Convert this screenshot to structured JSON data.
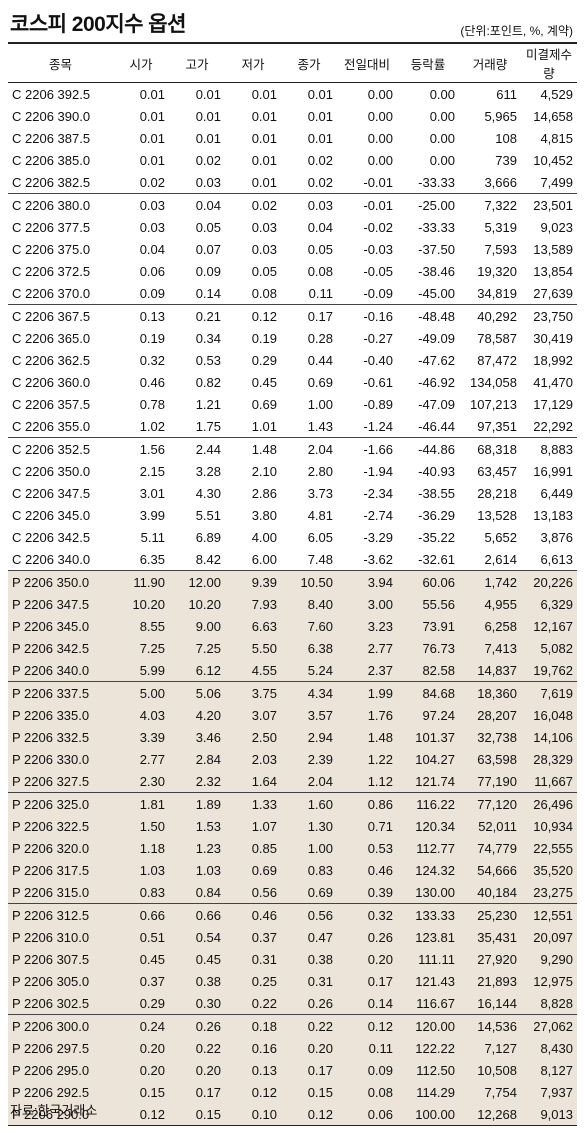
{
  "header": {
    "title": "코스피 200지수 옵션",
    "unit": "(단위:포인트, %, 계약)"
  },
  "table": {
    "columns": [
      "종목",
      "시가",
      "고가",
      "저가",
      "종가",
      "전일대비",
      "등락률",
      "거래량",
      "미결제수량"
    ],
    "rows": [
      [
        "C 2206 392.5",
        "0.01",
        "0.01",
        "0.01",
        "0.01",
        "0.00",
        "0.00",
        "611",
        "4,529"
      ],
      [
        "C 2206 390.0",
        "0.01",
        "0.01",
        "0.01",
        "0.01",
        "0.00",
        "0.00",
        "5,965",
        "14,658"
      ],
      [
        "C 2206 387.5",
        "0.01",
        "0.01",
        "0.01",
        "0.01",
        "0.00",
        "0.00",
        "108",
        "4,815"
      ],
      [
        "C 2206 385.0",
        "0.01",
        "0.02",
        "0.01",
        "0.02",
        "0.00",
        "0.00",
        "739",
        "10,452"
      ],
      [
        "C 2206 382.5",
        "0.02",
        "0.03",
        "0.01",
        "0.02",
        "-0.01",
        "-33.33",
        "3,666",
        "7,499"
      ],
      [
        "C 2206 380.0",
        "0.03",
        "0.04",
        "0.02",
        "0.03",
        "-0.01",
        "-25.00",
        "7,322",
        "23,501"
      ],
      [
        "C 2206 377.5",
        "0.03",
        "0.05",
        "0.03",
        "0.04",
        "-0.02",
        "-33.33",
        "5,319",
        "9,023"
      ],
      [
        "C 2206 375.0",
        "0.04",
        "0.07",
        "0.03",
        "0.05",
        "-0.03",
        "-37.50",
        "7,593",
        "13,589"
      ],
      [
        "C 2206 372.5",
        "0.06",
        "0.09",
        "0.05",
        "0.08",
        "-0.05",
        "-38.46",
        "19,320",
        "13,854"
      ],
      [
        "C 2206 370.0",
        "0.09",
        "0.14",
        "0.08",
        "0.11",
        "-0.09",
        "-45.00",
        "34,819",
        "27,639"
      ],
      [
        "C 2206 367.5",
        "0.13",
        "0.21",
        "0.12",
        "0.17",
        "-0.16",
        "-48.48",
        "40,292",
        "23,750"
      ],
      [
        "C 2206 365.0",
        "0.19",
        "0.34",
        "0.19",
        "0.28",
        "-0.27",
        "-49.09",
        "78,587",
        "30,419"
      ],
      [
        "C 2206 362.5",
        "0.32",
        "0.53",
        "0.29",
        "0.44",
        "-0.40",
        "-47.62",
        "87,472",
        "18,992"
      ],
      [
        "C 2206 360.0",
        "0.46",
        "0.82",
        "0.45",
        "0.69",
        "-0.61",
        "-46.92",
        "134,058",
        "41,470"
      ],
      [
        "C 2206 357.5",
        "0.78",
        "1.21",
        "0.69",
        "1.00",
        "-0.89",
        "-47.09",
        "107,213",
        "17,129"
      ],
      [
        "C 2206 355.0",
        "1.02",
        "1.75",
        "1.01",
        "1.43",
        "-1.24",
        "-46.44",
        "97,351",
        "22,292"
      ],
      [
        "C 2206 352.5",
        "1.56",
        "2.44",
        "1.48",
        "2.04",
        "-1.66",
        "-44.86",
        "68,318",
        "8,883"
      ],
      [
        "C 2206 350.0",
        "2.15",
        "3.28",
        "2.10",
        "2.80",
        "-1.94",
        "-40.93",
        "63,457",
        "16,991"
      ],
      [
        "C 2206 347.5",
        "3.01",
        "4.30",
        "2.86",
        "3.73",
        "-2.34",
        "-38.55",
        "28,218",
        "6,449"
      ],
      [
        "C 2206 345.0",
        "3.99",
        "5.51",
        "3.80",
        "4.81",
        "-2.74",
        "-36.29",
        "13,528",
        "13,183"
      ],
      [
        "C 2206 342.5",
        "5.11",
        "6.89",
        "4.00",
        "6.05",
        "-3.29",
        "-35.22",
        "5,652",
        "3,876"
      ],
      [
        "C 2206 340.0",
        "6.35",
        "8.42",
        "6.00",
        "7.48",
        "-3.62",
        "-32.61",
        "2,614",
        "6,613"
      ],
      [
        "P 2206 350.0",
        "11.90",
        "12.00",
        "9.39",
        "10.50",
        "3.94",
        "60.06",
        "1,742",
        "20,226"
      ],
      [
        "P 2206 347.5",
        "10.20",
        "10.20",
        "7.93",
        "8.40",
        "3.00",
        "55.56",
        "4,955",
        "6,329"
      ],
      [
        "P 2206 345.0",
        "8.55",
        "9.00",
        "6.63",
        "7.60",
        "3.23",
        "73.91",
        "6,258",
        "12,167"
      ],
      [
        "P 2206 342.5",
        "7.25",
        "7.25",
        "5.50",
        "6.38",
        "2.77",
        "76.73",
        "7,413",
        "5,082"
      ],
      [
        "P 2206 340.0",
        "5.99",
        "6.12",
        "4.55",
        "5.24",
        "2.37",
        "82.58",
        "14,837",
        "19,762"
      ],
      [
        "P 2206 337.5",
        "5.00",
        "5.06",
        "3.75",
        "4.34",
        "1.99",
        "84.68",
        "18,360",
        "7,619"
      ],
      [
        "P 2206 335.0",
        "4.03",
        "4.20",
        "3.07",
        "3.57",
        "1.76",
        "97.24",
        "28,207",
        "16,048"
      ],
      [
        "P 2206 332.5",
        "3.39",
        "3.46",
        "2.50",
        "2.94",
        "1.48",
        "101.37",
        "32,738",
        "14,106"
      ],
      [
        "P 2206 330.0",
        "2.77",
        "2.84",
        "2.03",
        "2.39",
        "1.22",
        "104.27",
        "63,598",
        "28,329"
      ],
      [
        "P 2206 327.5",
        "2.30",
        "2.32",
        "1.64",
        "2.04",
        "1.12",
        "121.74",
        "77,190",
        "11,667"
      ],
      [
        "P 2206 325.0",
        "1.81",
        "1.89",
        "1.33",
        "1.60",
        "0.86",
        "116.22",
        "77,120",
        "26,496"
      ],
      [
        "P 2206 322.5",
        "1.50",
        "1.53",
        "1.07",
        "1.30",
        "0.71",
        "120.34",
        "52,011",
        "10,934"
      ],
      [
        "P 2206 320.0",
        "1.18",
        "1.23",
        "0.85",
        "1.00",
        "0.53",
        "112.77",
        "74,779",
        "22,555"
      ],
      [
        "P 2206 317.5",
        "1.03",
        "1.03",
        "0.69",
        "0.83",
        "0.46",
        "124.32",
        "54,666",
        "35,520"
      ],
      [
        "P 2206 315.0",
        "0.83",
        "0.84",
        "0.56",
        "0.69",
        "0.39",
        "130.00",
        "40,184",
        "23,275"
      ],
      [
        "P 2206 312.5",
        "0.66",
        "0.66",
        "0.46",
        "0.56",
        "0.32",
        "133.33",
        "25,230",
        "12,551"
      ],
      [
        "P 2206 310.0",
        "0.51",
        "0.54",
        "0.37",
        "0.47",
        "0.26",
        "123.81",
        "35,431",
        "20,097"
      ],
      [
        "P 2206 307.5",
        "0.45",
        "0.45",
        "0.31",
        "0.38",
        "0.20",
        "111.11",
        "27,920",
        "9,290"
      ],
      [
        "P 2206 305.0",
        "0.37",
        "0.38",
        "0.25",
        "0.31",
        "0.17",
        "121.43",
        "21,893",
        "12,975"
      ],
      [
        "P 2206 302.5",
        "0.29",
        "0.30",
        "0.22",
        "0.26",
        "0.14",
        "116.67",
        "16,144",
        "8,828"
      ],
      [
        "P 2206 300.0",
        "0.24",
        "0.26",
        "0.18",
        "0.22",
        "0.12",
        "120.00",
        "14,536",
        "27,062"
      ],
      [
        "P 2206 297.5",
        "0.20",
        "0.22",
        "0.16",
        "0.20",
        "0.11",
        "122.22",
        "7,127",
        "8,430"
      ],
      [
        "P 2206 295.0",
        "0.20",
        "0.20",
        "0.13",
        "0.17",
        "0.09",
        "112.50",
        "10,508",
        "8,127"
      ],
      [
        "P 2206 292.5",
        "0.15",
        "0.17",
        "0.12",
        "0.15",
        "0.08",
        "114.29",
        "7,754",
        "7,937"
      ],
      [
        "P 2206 290.0",
        "0.12",
        "0.15",
        "0.10",
        "0.12",
        "0.06",
        "100.00",
        "12,268",
        "9,013"
      ]
    ]
  },
  "footer": {
    "source": "자료:한국거래소"
  }
}
